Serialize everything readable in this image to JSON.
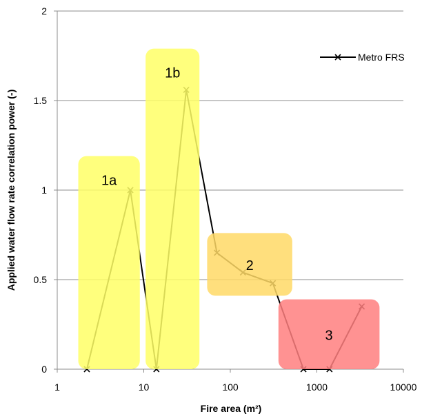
{
  "chart_data": {
    "type": "line",
    "xscale": "log",
    "xlim": [
      1,
      10000
    ],
    "ylim": [
      0,
      2
    ],
    "xticks": [
      1,
      10,
      100,
      1000,
      10000
    ],
    "xtick_labels": [
      "1",
      "10",
      "100",
      "1000",
      "10000"
    ],
    "yticks": [
      0,
      0.5,
      1,
      1.5,
      2
    ],
    "ytick_labels": [
      "0",
      "0.5",
      "1",
      "1.5",
      "2"
    ],
    "xlabel": "Fire area (m²)",
    "ylabel": "Applied water flow rate correlation power (-)",
    "grid": "horizontal",
    "legend_position": "top-right",
    "series": [
      {
        "name": "Metro FRS",
        "color": "#000000",
        "marker": "x",
        "x": [
          2.2,
          7,
          14,
          31,
          70,
          140,
          310,
          700,
          1400,
          3300
        ],
        "y": [
          0,
          1.0,
          0,
          1.56,
          0.65,
          0.54,
          0.48,
          0,
          0,
          0.35
        ]
      }
    ],
    "zones": [
      {
        "label": "1a",
        "color": "#ffff66",
        "x": [
          1.75,
          9
        ],
        "y": [
          0,
          1.19
        ]
      },
      {
        "label": "1b",
        "color": "#ffff66",
        "x": [
          10.5,
          44
        ],
        "y": [
          0,
          1.79
        ]
      },
      {
        "label": "2",
        "color": "#ffd966",
        "x": [
          54,
          520
        ],
        "y": [
          0.41,
          0.76
        ]
      },
      {
        "label": "3",
        "color": "#ff7f7f",
        "x": [
          360,
          5300
        ],
        "y": [
          0,
          0.39
        ]
      }
    ]
  }
}
